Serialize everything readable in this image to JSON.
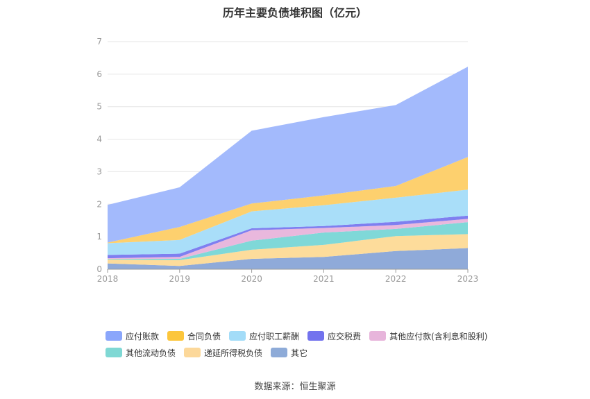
{
  "chart_data": {
    "type": "area",
    "title": "历年主要负债堆积图（亿元）",
    "stacked": true,
    "categories": [
      "2018",
      "2019",
      "2020",
      "2021",
      "2022",
      "2023"
    ],
    "ylim": [
      0,
      7
    ],
    "yticks": [
      "0",
      "1",
      "2",
      "3",
      "4",
      "5",
      "6",
      "7"
    ],
    "grid": true,
    "legend_position": "bottom",
    "series": [
      {
        "name": "其它",
        "color": "#8faad9",
        "values": [
          0.18,
          0.1,
          0.32,
          0.38,
          0.56,
          0.65
        ]
      },
      {
        "name": "递延所得税负债",
        "color": "#fddc9b",
        "values": [
          0.12,
          0.18,
          0.28,
          0.37,
          0.46,
          0.43
        ]
      },
      {
        "name": "其他流动负债",
        "color": "#7fd8d8",
        "values": [
          0.02,
          0.04,
          0.28,
          0.38,
          0.22,
          0.37
        ]
      },
      {
        "name": "其他应付款(含利息和股利)",
        "color": "#e9b8dd",
        "values": [
          0.02,
          0.06,
          0.32,
          0.14,
          0.12,
          0.1
        ]
      },
      {
        "name": "应交税费",
        "color": "#7f7ff0",
        "values": [
          0.1,
          0.1,
          0.06,
          0.06,
          0.1,
          0.1
        ]
      },
      {
        "name": "应付职工薪酬",
        "color": "#a9def9",
        "values": [
          0.36,
          0.42,
          0.52,
          0.64,
          0.74,
          0.8
        ]
      },
      {
        "name": "合同负债",
        "color": "#fdd06e",
        "values": [
          0.02,
          0.4,
          0.24,
          0.3,
          0.36,
          1.0
        ]
      },
      {
        "name": "应付账款",
        "color": "#a3bafc",
        "values": [
          1.16,
          1.22,
          2.24,
          2.41,
          2.49,
          2.78
        ]
      }
    ]
  },
  "legend": [
    {
      "label": "应付账款",
      "color": "#8aa6fb"
    },
    {
      "label": "合同负债",
      "color": "#fcc63c"
    },
    {
      "label": "应付职工薪酬",
      "color": "#a3dcf8"
    },
    {
      "label": "应交税费",
      "color": "#7373ee"
    },
    {
      "label": "其他应付款(含利息和股利)",
      "color": "#e7b5db"
    },
    {
      "label": "其他流动负债",
      "color": "#7fd8d4"
    },
    {
      "label": "递延所得税负债",
      "color": "#fcd89a"
    },
    {
      "label": "其它",
      "color": "#8eabd8"
    }
  ],
  "source": "数据来源：恒生聚源"
}
